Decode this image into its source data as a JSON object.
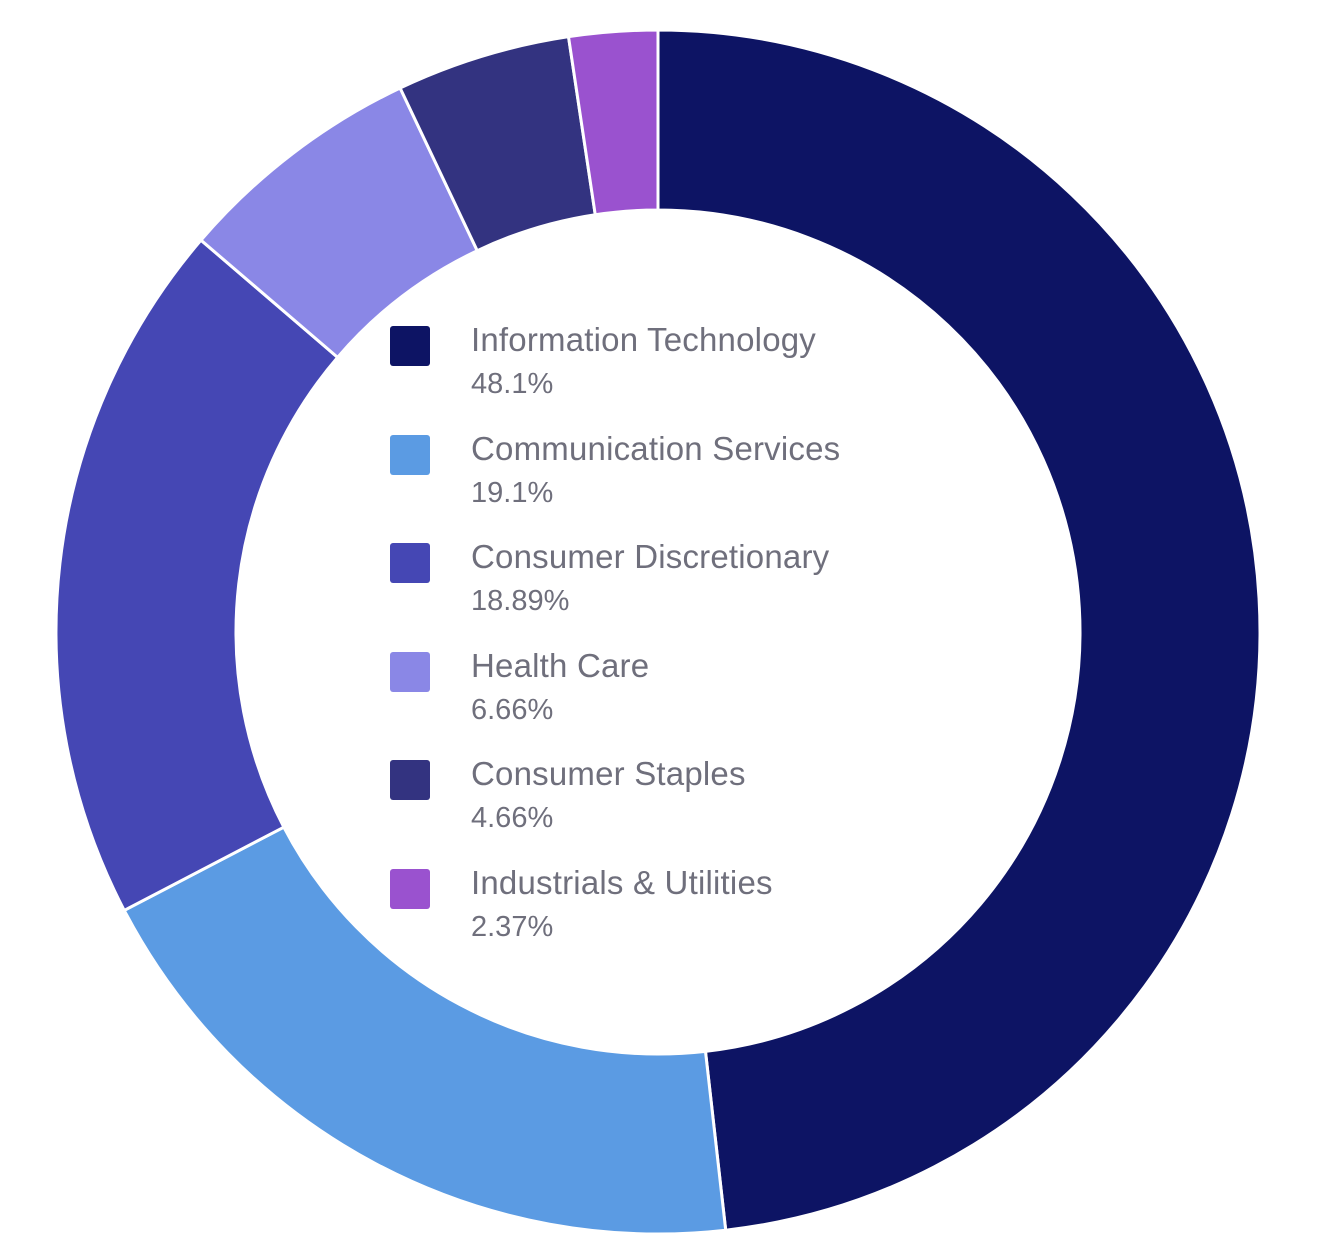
{
  "chart_data": {
    "type": "pie",
    "style": "donut",
    "legend_position": "center",
    "series": [
      {
        "name": "Information Technology",
        "value": 48.1,
        "value_label": "48.1%",
        "color": "#0d1464"
      },
      {
        "name": "Communication Services",
        "value": 19.1,
        "value_label": "19.1%",
        "color": "#5b9be3"
      },
      {
        "name": "Consumer Discretionary",
        "value": 18.89,
        "value_label": "18.89%",
        "color": "#4547b4"
      },
      {
        "name": "Health Care",
        "value": 6.66,
        "value_label": "6.66%",
        "color": "#8a87e6"
      },
      {
        "name": "Consumer Staples",
        "value": 4.66,
        "value_label": "4.66%",
        "color": "#333380"
      },
      {
        "name": "Industrials & Utilities",
        "value": 2.37,
        "value_label": "2.37%",
        "color": "#9a52cf"
      }
    ]
  }
}
